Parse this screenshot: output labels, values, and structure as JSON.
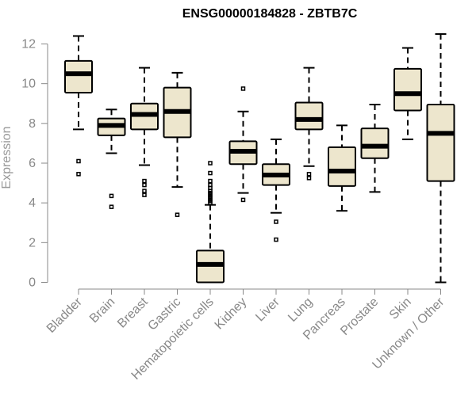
{
  "chart_data": {
    "type": "box",
    "title": "ENSG00000184828 - ZBTB7C",
    "xlabel": "",
    "ylabel": "Expression",
    "ylim": [
      0,
      12.5
    ],
    "yticks": [
      0,
      2,
      4,
      6,
      8,
      10,
      12
    ],
    "grid": false,
    "colors": {
      "box_fill": "#ede6cd",
      "box_stroke": "#000000",
      "axis": "#888888"
    },
    "categories": [
      "Bladder",
      "Brain",
      "Breast",
      "Gastric",
      "Hematopoietic cells",
      "Kidney",
      "Liver",
      "Lung",
      "Pancreas",
      "Prostate",
      "Skin",
      "Unknown / Other"
    ],
    "boxes": [
      {
        "category": "Bladder",
        "q1": 9.55,
        "median": 10.5,
        "q3": 11.15,
        "whisker_low": 7.7,
        "whisker_high": 12.4,
        "outliers": [
          6.1,
          5.45
        ]
      },
      {
        "category": "Brain",
        "q1": 7.4,
        "median": 7.9,
        "q3": 8.25,
        "whisker_low": 6.5,
        "whisker_high": 8.7,
        "outliers": [
          4.35,
          3.8
        ]
      },
      {
        "category": "Breast",
        "q1": 7.7,
        "median": 8.45,
        "q3": 9.0,
        "whisker_low": 5.9,
        "whisker_high": 10.8,
        "outliers": [
          5.1,
          4.9,
          4.6,
          4.4
        ]
      },
      {
        "category": "Gastric",
        "q1": 7.3,
        "median": 8.6,
        "q3": 9.8,
        "whisker_low": 4.8,
        "whisker_high": 10.55,
        "outliers": [
          3.4
        ]
      },
      {
        "category": "Hematopoietic cells",
        "q1": 0.0,
        "median": 0.9,
        "q3": 1.6,
        "whisker_low": 0.0,
        "whisker_high": 3.9,
        "outliers": [
          6.0,
          5.5,
          5.1,
          4.9,
          4.75,
          4.6,
          4.5,
          4.4,
          4.3,
          4.2,
          4.1,
          4.0
        ]
      },
      {
        "category": "Kidney",
        "q1": 5.95,
        "median": 6.6,
        "q3": 7.1,
        "whisker_low": 4.5,
        "whisker_high": 8.6,
        "outliers": [
          9.75,
          4.15
        ]
      },
      {
        "category": "Liver",
        "q1": 4.9,
        "median": 5.4,
        "q3": 5.95,
        "whisker_low": 3.5,
        "whisker_high": 7.2,
        "outliers": [
          3.05,
          2.15
        ]
      },
      {
        "category": "Lung",
        "q1": 7.7,
        "median": 8.2,
        "q3": 9.05,
        "whisker_low": 5.85,
        "whisker_high": 10.8,
        "outliers": [
          5.45,
          5.25
        ]
      },
      {
        "category": "Pancreas",
        "q1": 4.85,
        "median": 5.6,
        "q3": 6.8,
        "whisker_low": 3.6,
        "whisker_high": 7.9,
        "outliers": []
      },
      {
        "category": "Prostate",
        "q1": 6.25,
        "median": 6.85,
        "q3": 7.75,
        "whisker_low": 4.55,
        "whisker_high": 8.95,
        "outliers": []
      },
      {
        "category": "Skin",
        "q1": 8.65,
        "median": 9.5,
        "q3": 10.75,
        "whisker_low": 7.2,
        "whisker_high": 11.8,
        "outliers": []
      },
      {
        "category": "Unknown / Other",
        "q1": 5.1,
        "median": 7.5,
        "q3": 8.95,
        "whisker_low": 0.0,
        "whisker_high": 12.5,
        "outliers": []
      }
    ]
  }
}
